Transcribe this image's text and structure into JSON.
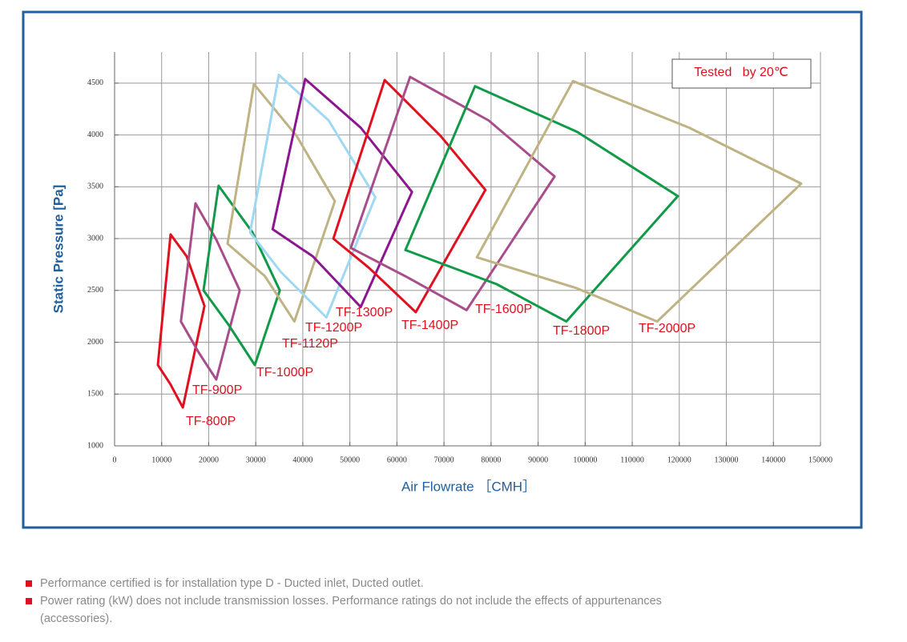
{
  "chart_data": {
    "type": "polygon",
    "annotation": "Tested   by 20℃",
    "xlabel": "Air Flowrate ［CMH］",
    "ylabel": "Static Pressure [Pa]",
    "xlim": [
      0,
      150000
    ],
    "xticks": [
      0,
      10000,
      20000,
      30000,
      40000,
      50000,
      60000,
      70000,
      80000,
      90000,
      100000,
      110000,
      120000,
      130000,
      140000,
      150000
    ],
    "ylim": [
      1000,
      4800
    ],
    "yticks": [
      1000,
      1500,
      2000,
      2500,
      3000,
      3500,
      4000,
      4500
    ],
    "grid": true,
    "label_color": "#e0101e",
    "series": [
      {
        "name": "TF-800P",
        "color": "#e0101e",
        "x": [
          11900,
          15300,
          19100,
          14500,
          11800,
          9200
        ],
        "values": [
          3040,
          2830,
          2350,
          1370,
          1600,
          1780
        ]
      },
      {
        "name": "TF-900P",
        "color": "#a84c8b",
        "x": [
          17200,
          21600,
          26600,
          21600,
          17900,
          14100
        ],
        "values": [
          3340,
          2990,
          2500,
          1640,
          1900,
          2200
        ]
      },
      {
        "name": "TF-1000P",
        "color": "#119a48",
        "x": [
          22100,
          29300,
          35100,
          29800,
          24200,
          18900
        ],
        "values": [
          3510,
          3060,
          2500,
          1780,
          2170,
          2500
        ]
      },
      {
        "name": "TF-1120P",
        "color": "#bfb283",
        "x": [
          29600,
          38700,
          46800,
          38200,
          31900,
          24000
        ],
        "values": [
          4490,
          3990,
          3360,
          2200,
          2640,
          2950
        ]
      },
      {
        "name": "TF-1200P",
        "color": "#9fd8f2",
        "x": [
          34900,
          45500,
          55400,
          45000,
          35300,
          28800
        ],
        "values": [
          4580,
          4140,
          3400,
          2240,
          2680,
          3060
        ]
      },
      {
        "name": "TF-1300P",
        "color": "#8b168f",
        "x": [
          40500,
          52300,
          63200,
          52300,
          42100,
          33600
        ],
        "values": [
          4540,
          4070,
          3450,
          2340,
          2830,
          3090
        ]
      },
      {
        "name": "TF-1400P",
        "color": "#e0101e",
        "x": [
          57400,
          69300,
          78800,
          64000,
          54000,
          46500
        ],
        "values": [
          4530,
          3990,
          3470,
          2290,
          2720,
          3000
        ]
      },
      {
        "name": "TF-1600P",
        "color": "#a84c8b",
        "x": [
          62800,
          79500,
          93500,
          74800,
          62500,
          50200
        ],
        "values": [
          4560,
          4140,
          3600,
          2310,
          2620,
          2910
        ]
      },
      {
        "name": "TF-1800P",
        "color": "#119a48",
        "x": [
          76600,
          98300,
          119700,
          96000,
          81200,
          61800
        ],
        "values": [
          4470,
          4030,
          3410,
          2200,
          2560,
          2890
        ]
      },
      {
        "name": "TF-2000P",
        "color": "#bfb283",
        "x": [
          97400,
          122100,
          145900,
          115300,
          98300,
          77000
        ],
        "values": [
          4520,
          4070,
          3530,
          2200,
          2520,
          2820
        ]
      }
    ]
  },
  "notes": [
    "Performance certified is for installation type D - Ducted inlet, Ducted outlet.",
    "Power rating (kW) does not include transmission losses. Performance ratings do not include the effects of appurtenances (accessories)."
  ]
}
